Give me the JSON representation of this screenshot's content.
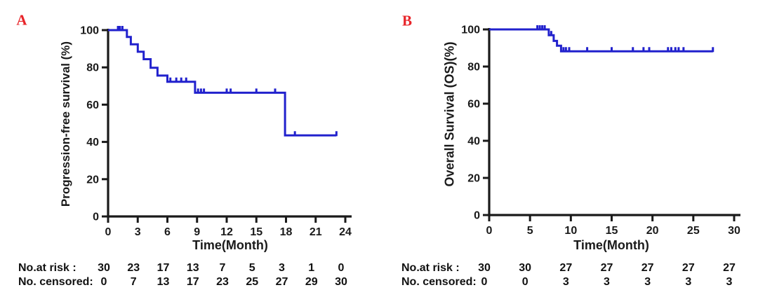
{
  "figure": {
    "background": "#ffffff",
    "panel_label_color": "#e8252a",
    "curve_color": "#2121cd",
    "axis_color": "#1a1a1a"
  },
  "panels": [
    {
      "letter": "A",
      "y_label": "Progression-free survival (%)",
      "x_label": "Time(Month)",
      "at_risk_label": "No.at risk :",
      "censored_label": "No. censored:"
    },
    {
      "letter": "B",
      "y_label": "Overall Survival (OS)(%)",
      "x_label": "Time(Month)",
      "at_risk_label": "No.at risk :",
      "censored_label": "No. censored:"
    }
  ],
  "chart_data": [
    {
      "type": "line",
      "subtype": "kaplan-meier-step",
      "panel": "A",
      "title": "Progression-free survival",
      "xlabel": "Time(Month)",
      "ylabel": "Progression-free survival (%)",
      "xlim": [
        0,
        24
      ],
      "ylim": [
        0,
        100
      ],
      "x_ticks": [
        0,
        3,
        6,
        9,
        12,
        15,
        18,
        21,
        24
      ],
      "y_ticks": [
        0,
        20,
        40,
        60,
        80,
        100
      ],
      "grid": false,
      "legend": false,
      "series": [
        {
          "name": "Progression-free survival (%)",
          "color": "#2121cd",
          "steps": [
            [
              0,
              100
            ],
            [
              1.9,
              100
            ],
            [
              1.9,
              96.3
            ],
            [
              2.3,
              96.3
            ],
            [
              2.3,
              92.4
            ],
            [
              3.0,
              92.4
            ],
            [
              3.0,
              88.4
            ],
            [
              3.6,
              88.4
            ],
            [
              3.6,
              84.4
            ],
            [
              4.3,
              84.4
            ],
            [
              4.3,
              79.8
            ],
            [
              5.0,
              79.8
            ],
            [
              5.0,
              75.6
            ],
            [
              6.0,
              75.6
            ],
            [
              6.0,
              72.3
            ],
            [
              8.8,
              72.3
            ],
            [
              8.8,
              66.4
            ],
            [
              17.9,
              66.4
            ],
            [
              17.9,
              43.5
            ],
            [
              23.1,
              43.5
            ]
          ],
          "censor_marks": [
            [
              1.0,
              100
            ],
            [
              1.2,
              100
            ],
            [
              1.45,
              100
            ],
            [
              6.3,
              72.3
            ],
            [
              6.9,
              72.3
            ],
            [
              7.4,
              72.3
            ],
            [
              7.9,
              72.3
            ],
            [
              9.1,
              66.4
            ],
            [
              9.4,
              66.4
            ],
            [
              9.7,
              66.4
            ],
            [
              12.0,
              66.4
            ],
            [
              12.4,
              66.4
            ],
            [
              15.0,
              66.4
            ],
            [
              16.9,
              66.4
            ],
            [
              18.9,
              43.5
            ],
            [
              23.1,
              43.5
            ]
          ]
        }
      ],
      "at_risk": {
        "times": [
          0,
          3,
          6,
          9,
          12,
          15,
          18,
          21,
          24
        ],
        "values": [
          30,
          23,
          17,
          13,
          7,
          5,
          3,
          1,
          0
        ]
      },
      "censored": {
        "times": [
          0,
          3,
          6,
          9,
          12,
          15,
          18,
          21,
          24
        ],
        "values": [
          0,
          7,
          13,
          17,
          23,
          25,
          27,
          29,
          30
        ]
      }
    },
    {
      "type": "line",
      "subtype": "kaplan-meier-step",
      "panel": "B",
      "title": "Overall Survival",
      "xlabel": "Time(Month)",
      "ylabel": "Overall Survival (OS)(%)",
      "xlim": [
        0,
        30
      ],
      "ylim": [
        0,
        100
      ],
      "x_ticks": [
        0,
        5,
        10,
        15,
        20,
        25,
        30
      ],
      "y_ticks": [
        0,
        20,
        40,
        60,
        80,
        100
      ],
      "grid": false,
      "legend": false,
      "series": [
        {
          "name": "Overall Survival (OS)(%)",
          "color": "#2121cd",
          "steps": [
            [
              0,
              100
            ],
            [
              7.3,
              100
            ],
            [
              7.3,
              96.9
            ],
            [
              7.9,
              96.9
            ],
            [
              7.9,
              93.8
            ],
            [
              8.3,
              93.8
            ],
            [
              8.3,
              91.2
            ],
            [
              8.8,
              91.2
            ],
            [
              8.8,
              88.2
            ],
            [
              27.4,
              88.2
            ]
          ],
          "censor_marks": [
            [
              5.9,
              100
            ],
            [
              6.2,
              100
            ],
            [
              6.5,
              100
            ],
            [
              6.8,
              100
            ],
            [
              7.6,
              96.9
            ],
            [
              9.1,
              88.2
            ],
            [
              9.4,
              88.2
            ],
            [
              9.8,
              88.2
            ],
            [
              12.0,
              88.2
            ],
            [
              15.0,
              88.2
            ],
            [
              17.6,
              88.2
            ],
            [
              18.9,
              88.2
            ],
            [
              19.6,
              88.2
            ],
            [
              21.9,
              88.2
            ],
            [
              22.3,
              88.2
            ],
            [
              22.8,
              88.2
            ],
            [
              23.2,
              88.2
            ],
            [
              23.8,
              88.2
            ],
            [
              27.4,
              88.2
            ]
          ]
        }
      ],
      "at_risk": {
        "times": [
          0,
          5,
          10,
          15,
          20,
          25,
          30
        ],
        "values": [
          30,
          30,
          27,
          27,
          27,
          27,
          27
        ]
      },
      "censored": {
        "times": [
          0,
          5,
          10,
          15,
          20,
          25,
          30
        ],
        "values": [
          0,
          0,
          3,
          3,
          3,
          3,
          3
        ]
      }
    }
  ]
}
